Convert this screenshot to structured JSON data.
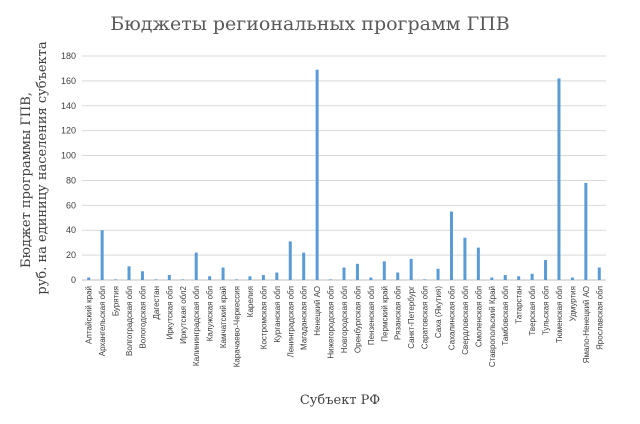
{
  "chart_data": {
    "type": "bar",
    "title": "Бюджеты региональных программ ГПВ",
    "ylabel_line1": "Бюджет программы ГПВ,",
    "ylabel_line2": "руб. на единицу населения субъекта",
    "xlabel": "Субъект РФ",
    "ylim": [
      0,
      180
    ],
    "yticks": [
      0,
      20,
      40,
      60,
      80,
      100,
      120,
      140,
      160,
      180
    ],
    "grid": true,
    "legend": "none",
    "bar_color": "#5b9bd5",
    "categories": [
      "Алтайский край",
      "Архангельская обл",
      "Бурятия",
      "Волгоградская обл",
      "Вологодская обл",
      "Дагестан",
      "Иркутская обл",
      "Иркутская обл2",
      "Калининградская обл",
      "Калужская обл",
      "Камчатский край",
      "Карачаево-Черкессия",
      "Карелия",
      "Костромская обл",
      "Курганская обл",
      "Ленинградская обл",
      "Магаданская обл",
      "Ненецкий АО",
      "Нижегородская обл",
      "Новгородская обл",
      "Оренбургская обл",
      "Пензенская обл",
      "Пермский край",
      "Рязанская обл",
      "Санкт-Петербург",
      "Саратовская обл",
      "Саха (Якутия)",
      "Сахалинская обл",
      "Свердловская обл",
      "Смоленская обл",
      "Ставропольский Край",
      "Тамбовская обл",
      "Татарстан",
      "Тверская обл",
      "Тульская обл",
      "Тюменская обл",
      "Удмуртия",
      "Ямало-Ненецкий АО",
      "Ярославская обл"
    ],
    "values": [
      2,
      40,
      0.5,
      11,
      7,
      0.5,
      4,
      0.5,
      22,
      3,
      10,
      0.5,
      3,
      4,
      6,
      31,
      22,
      169,
      0.5,
      10,
      13,
      2,
      15,
      6,
      17,
      0.5,
      9,
      55,
      34,
      26,
      2,
      4,
      3,
      5,
      16,
      162,
      2,
      78,
      10
    ]
  }
}
